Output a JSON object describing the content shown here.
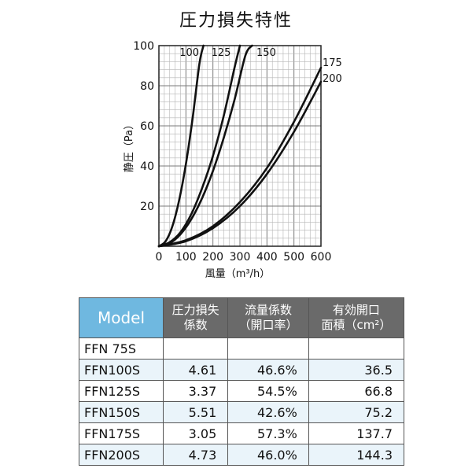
{
  "chart_data": {
    "type": "line",
    "title": "圧力損失特性",
    "xlabel": "風量（m³/h）",
    "ylabel": "静圧（Pa）",
    "xlim": [
      0,
      600
    ],
    "ylim": [
      0,
      100
    ],
    "xticks": [
      "0",
      "100",
      "200",
      "300",
      "400",
      "500",
      "600"
    ],
    "yticks": [
      "20",
      "40",
      "60",
      "80",
      "100"
    ],
    "grid": true,
    "series": [
      {
        "name": "100",
        "x": [
          0,
          25,
          50,
          75,
          100,
          125,
          150,
          165
        ],
        "y": [
          0,
          2.5,
          10,
          23,
          41,
          64,
          91,
          100
        ]
      },
      {
        "name": "125",
        "x": [
          0,
          40,
          80,
          120,
          160,
          200,
          240,
          280,
          300
        ],
        "y": [
          0,
          2,
          7,
          16,
          29,
          45,
          65,
          89,
          100
        ]
      },
      {
        "name": "150",
        "x": [
          0,
          40,
          80,
          120,
          160,
          200,
          240,
          280,
          320,
          345
        ],
        "y": [
          0,
          1.5,
          6,
          13.5,
          24,
          37.5,
          54,
          73,
          95,
          100
        ]
      },
      {
        "name": "175",
        "x": [
          0,
          100,
          200,
          300,
          400,
          500,
          600
        ],
        "y": [
          0,
          3,
          10,
          22,
          39,
          62,
          89
        ]
      },
      {
        "name": "200",
        "x": [
          0,
          100,
          200,
          300,
          400,
          500,
          600
        ],
        "y": [
          0,
          2.5,
          9,
          20,
          36,
          57,
          82
        ]
      }
    ]
  },
  "table": {
    "headers": {
      "model": "Model",
      "coef_line1": "圧力損失",
      "coef_line2": "係数",
      "flow_line1": "流量係数",
      "flow_line2": "（開口率）",
      "area_line1": "有効開口",
      "area_line2": "面積（cm²）"
    },
    "rows": [
      {
        "model": "FFN  75S",
        "coef": "",
        "flow": "",
        "area": ""
      },
      {
        "model": "FFN100S",
        "coef": "4.61",
        "flow": "46.6%",
        "area": "36.5"
      },
      {
        "model": "FFN125S",
        "coef": "3.37",
        "flow": "54.5%",
        "area": "66.8"
      },
      {
        "model": "FFN150S",
        "coef": "5.51",
        "flow": "42.6%",
        "area": "75.2"
      },
      {
        "model": "FFN175S",
        "coef": "3.05",
        "flow": "57.3%",
        "area": "137.7"
      },
      {
        "model": "FFN200S",
        "coef": "4.73",
        "flow": "46.0%",
        "area": "144.3"
      }
    ]
  }
}
